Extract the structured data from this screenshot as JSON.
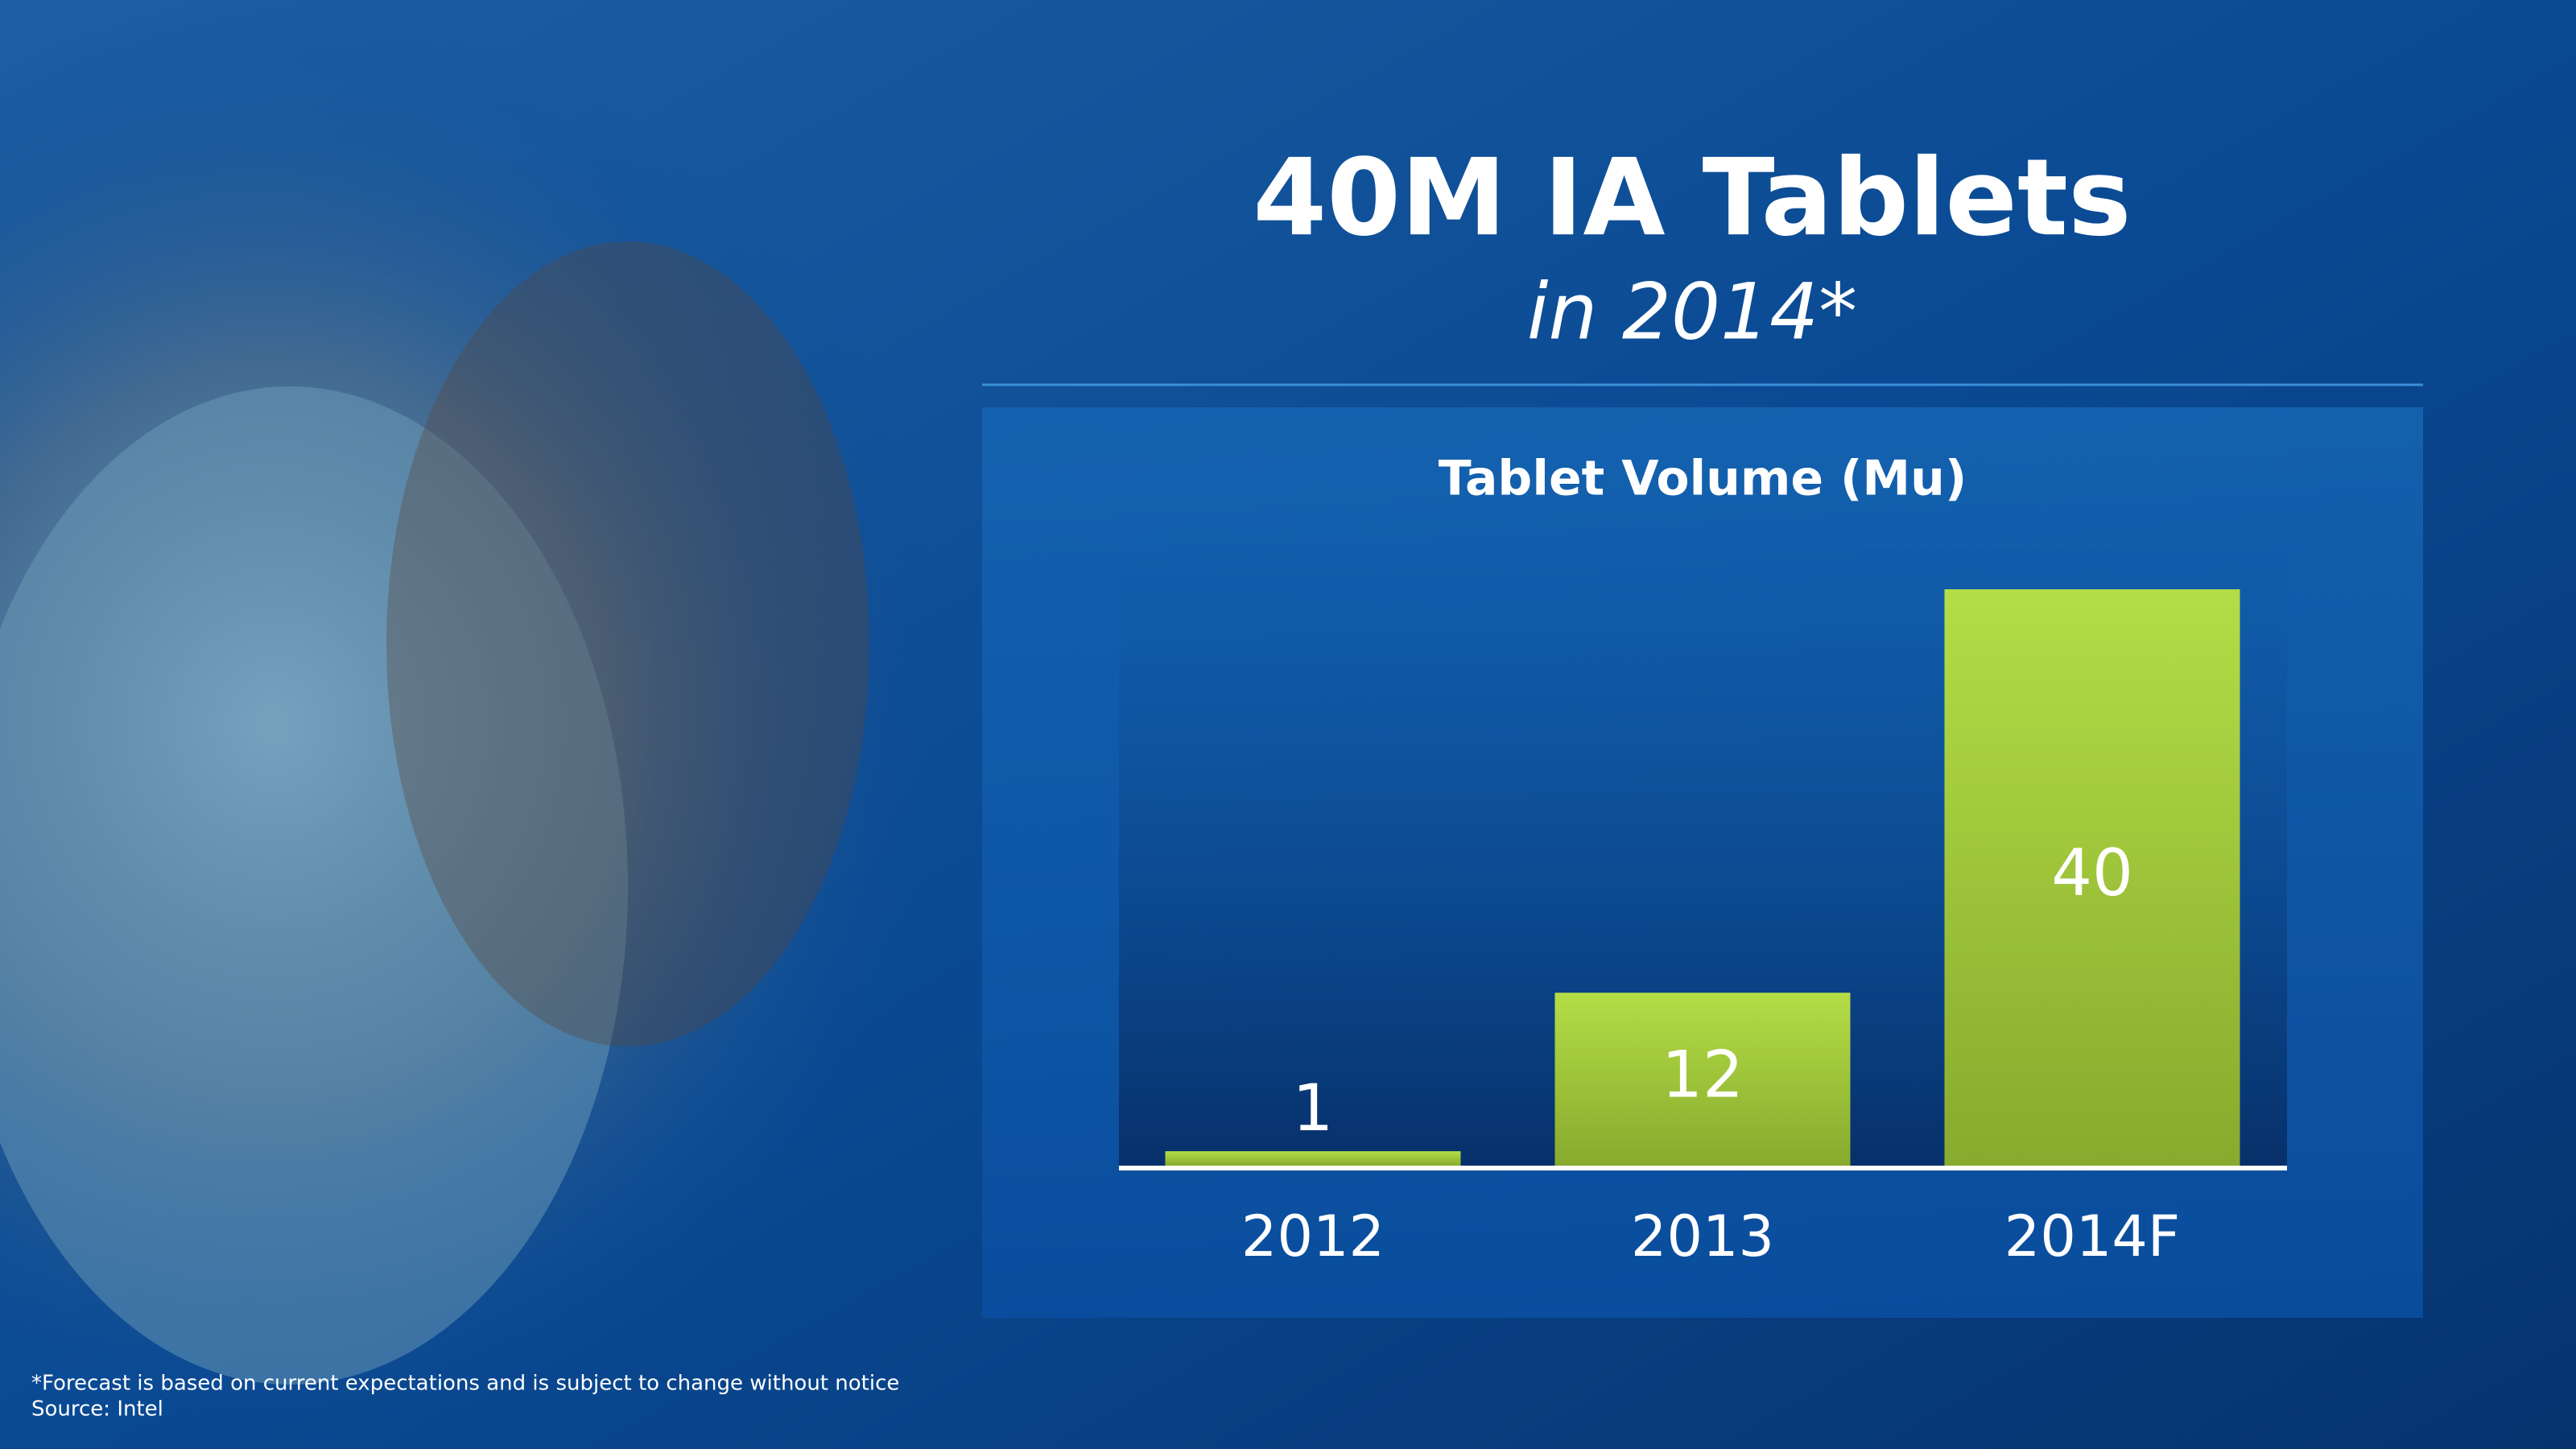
{
  "chart_data": {
    "type": "bar",
    "title": "40M IA Tablets",
    "subtitle": "in 2014*",
    "chart_title": "Tablet Volume (Mu)",
    "categories": [
      "2012",
      "2013",
      "2014F"
    ],
    "values": [
      1,
      12,
      40
    ],
    "color": "#a4cc3c",
    "footnotes": [
      "*Forecast  is based on current expectations and is subject to change without notice",
      "Source: Intel"
    ]
  }
}
